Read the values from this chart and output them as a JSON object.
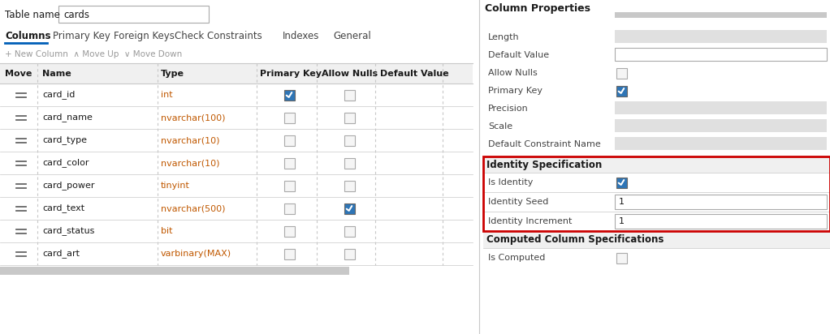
{
  "bg_color": "#ffffff",
  "table_name": "cards",
  "tabs": [
    "Columns",
    "Primary Key",
    "Foreign Keys",
    "Check Constraints",
    "Indexes",
    "General"
  ],
  "active_tab": "Columns",
  "col_headers": [
    "Move",
    "Name",
    "Type",
    "Primary Key",
    "Allow Nulls",
    "Default Value"
  ],
  "rows": [
    {
      "name": "card_id",
      "type": "int",
      "pk": true,
      "nulls": false
    },
    {
      "name": "card_name",
      "type": "nvarchar(100)",
      "pk": false,
      "nulls": false
    },
    {
      "name": "card_type",
      "type": "nvarchar(10)",
      "pk": false,
      "nulls": false
    },
    {
      "name": "card_color",
      "type": "nvarchar(10)",
      "pk": false,
      "nulls": false
    },
    {
      "name": "card_power",
      "type": "tinyint",
      "pk": false,
      "nulls": false
    },
    {
      "name": "card_text",
      "type": "nvarchar(500)",
      "pk": false,
      "nulls": true
    },
    {
      "name": "card_status",
      "type": "bit",
      "pk": false,
      "nulls": false
    },
    {
      "name": "card_art",
      "type": "varbinary(MAX)",
      "pk": false,
      "nulls": false
    }
  ],
  "right_panel_title": "Column Properties",
  "right_fields": [
    {
      "label": "Length",
      "type": "gray_box",
      "value": ""
    },
    {
      "label": "Default Value",
      "type": "white_box",
      "value": ""
    },
    {
      "label": "Allow Nulls",
      "type": "checkbox",
      "value": false
    },
    {
      "label": "Primary Key",
      "type": "checkbox",
      "value": true
    },
    {
      "label": "Precision",
      "type": "gray_box",
      "value": ""
    },
    {
      "label": "Scale",
      "type": "gray_box",
      "value": ""
    },
    {
      "label": "Default Constraint Name",
      "type": "gray_box",
      "value": ""
    }
  ],
  "identity_section_title": "Identity Specification",
  "identity_fields": [
    {
      "label": "Is Identity",
      "type": "checkbox",
      "value": true
    },
    {
      "label": "Identity Seed",
      "type": "white_box",
      "value": "1"
    },
    {
      "label": "Identity Increment",
      "type": "white_box",
      "value": "1"
    }
  ],
  "computed_section_title": "Computed Column Specifications",
  "computed_fields": [
    {
      "label": "Is Computed",
      "type": "checkbox",
      "value": false
    }
  ],
  "red_box_color": "#cc0000",
  "blue_check_color": "#2e75b6",
  "gray_box_color": "#e0e0e0",
  "header_bg": "#f0f0f0",
  "section_bg": "#f0f0f0",
  "divider_color": "#c8c8c8",
  "text_color": "#1a1a1a",
  "label_color": "#444444",
  "type_color": "#c05800",
  "tab_underline_color": "#005fb8",
  "scrollbar_color": "#c8c8c8",
  "tab_label_color": "#444444"
}
